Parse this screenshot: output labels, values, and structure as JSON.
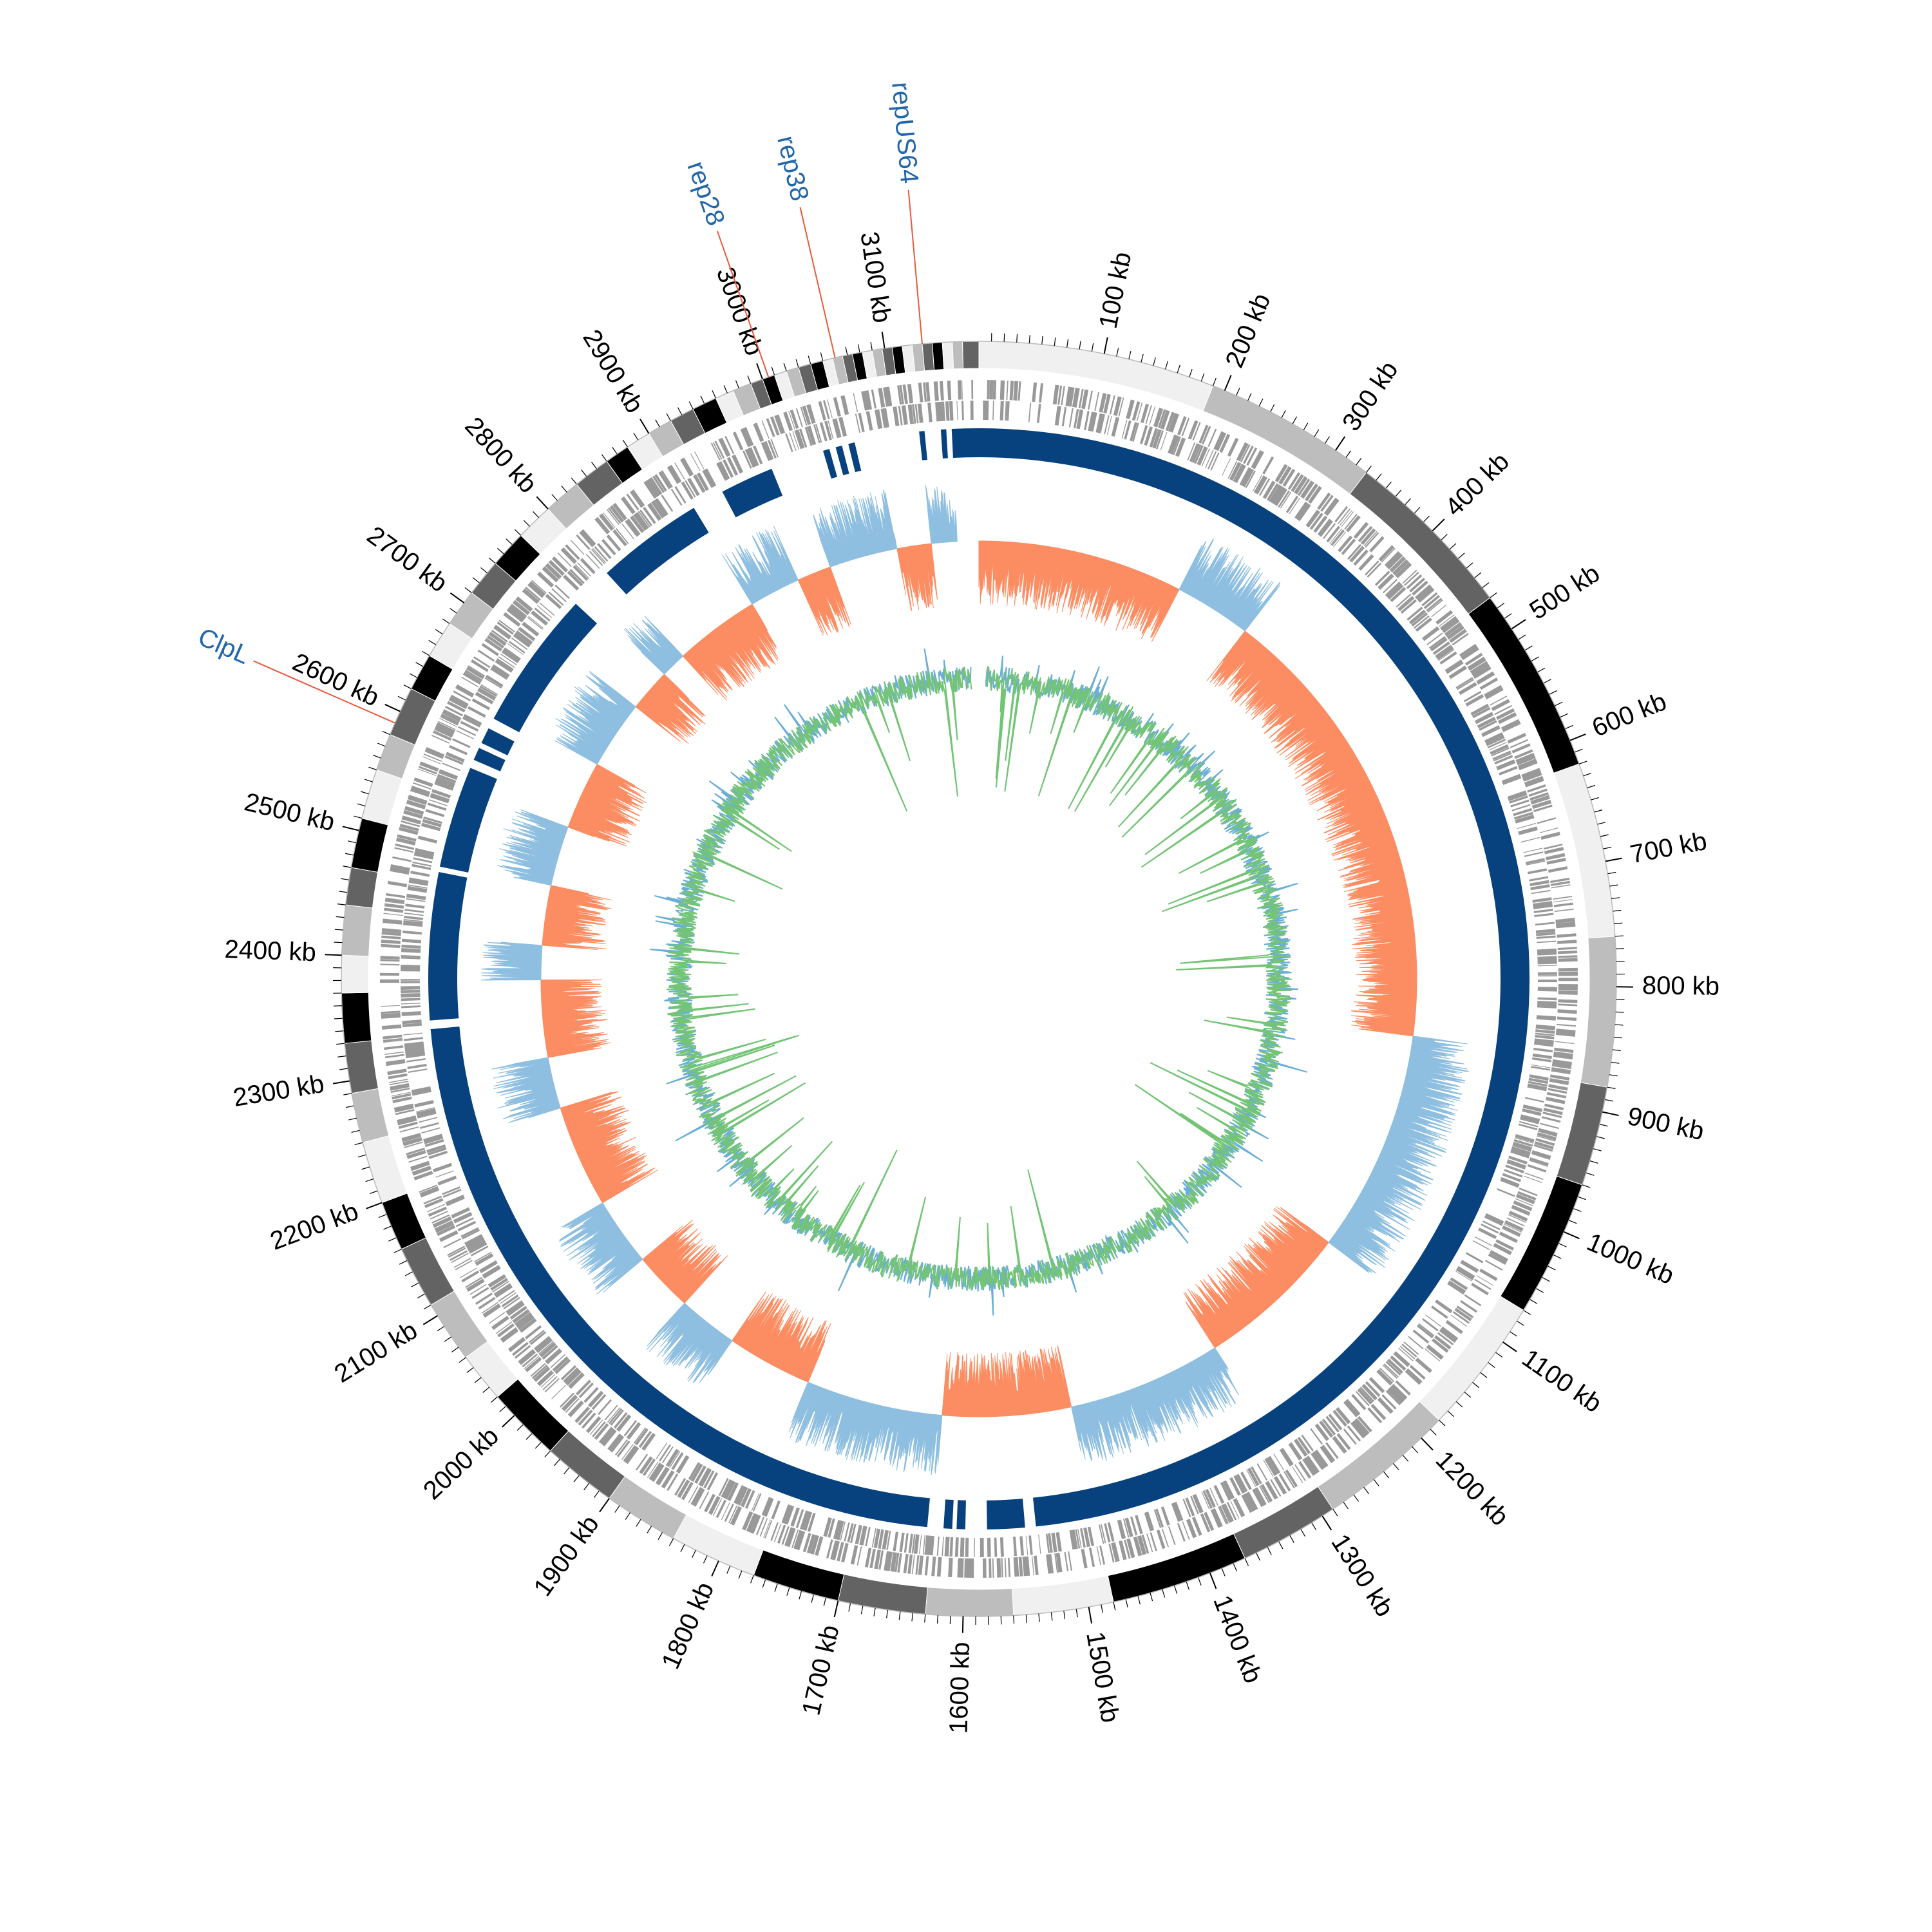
{
  "chart_data": {
    "type": "circular-genome",
    "xlim": [
      0,
      3175
    ],
    "xticks": [
      {
        "value": 100,
        "label": "100 kb"
      },
      {
        "value": 200,
        "label": "200 kb"
      },
      {
        "value": 300,
        "label": "300 kb"
      },
      {
        "value": 400,
        "label": "400 kb"
      },
      {
        "value": 500,
        "label": "500 kb"
      },
      {
        "value": 600,
        "label": "600 kb"
      },
      {
        "value": 700,
        "label": "700 kb"
      },
      {
        "value": 800,
        "label": "800 kb"
      },
      {
        "value": 900,
        "label": "900 kb"
      },
      {
        "value": 1000,
        "label": "1000 kb"
      },
      {
        "value": 1100,
        "label": "1100 kb"
      },
      {
        "value": 1200,
        "label": "1200 kb"
      },
      {
        "value": 1300,
        "label": "1300 kb"
      },
      {
        "value": 1400,
        "label": "1400 kb"
      },
      {
        "value": 1500,
        "label": "1500 kb"
      },
      {
        "value": 1600,
        "label": "1600 kb"
      },
      {
        "value": 1700,
        "label": "1700 kb"
      },
      {
        "value": 1800,
        "label": "1800 kb"
      },
      {
        "value": 1900,
        "label": "1900 kb"
      },
      {
        "value": 2000,
        "label": "2000 kb"
      },
      {
        "value": 2100,
        "label": "2100 kb"
      },
      {
        "value": 2200,
        "label": "2200 kb"
      },
      {
        "value": 2300,
        "label": "2300 kb"
      },
      {
        "value": 2400,
        "label": "2400 kb"
      },
      {
        "value": 2500,
        "label": "2500 kb"
      },
      {
        "value": 2600,
        "label": "2600 kb"
      },
      {
        "value": 2700,
        "label": "2700 kb"
      },
      {
        "value": 2800,
        "label": "2800 kb"
      },
      {
        "value": 2900,
        "label": "2900 kb"
      },
      {
        "value": 3000,
        "label": "3000 kb"
      },
      {
        "value": 3100,
        "label": "3100 kb"
      }
    ],
    "bands": {
      "colors": [
        "#f0f0f0",
        "#bdbdbd",
        "#636363",
        "#000000"
      ],
      "ends": [
        190,
        330,
        470,
        620,
        760,
        880,
        960,
        1070,
        1180,
        1290,
        1370,
        1480,
        1560,
        1630,
        1700,
        1770,
        1840,
        1900,
        1960,
        2020,
        2060,
        2110,
        2160,
        2200,
        2250,
        2290,
        2330,
        2370,
        2400,
        2440,
        2470,
        2510,
        2550,
        2580,
        2620,
        2650,
        2680,
        2710,
        2740,
        2770,
        2800,
        2830,
        2860,
        2880,
        2900,
        2920,
        2940,
        2960,
        2975,
        2990,
        3000,
        3010,
        3020,
        3030,
        3040,
        3050,
        3058,
        3066,
        3074,
        3082,
        3090,
        3098,
        3106,
        3114,
        3122,
        3130,
        3138,
        3146,
        3154,
        3162,
        3175
      ]
    },
    "contigs": {
      "color": "#08427e",
      "segments": [
        [
          0,
          1535
        ],
        [
          1545,
          1580
        ],
        [
          1600,
          1608
        ],
        [
          1612,
          1620
        ],
        [
          1635,
          2335
        ],
        [
          2343,
          2480
        ],
        [
          2485,
          2580
        ],
        [
          2588,
          2600
        ],
        [
          2605,
          2620
        ],
        [
          2630,
          2760
        ],
        [
          2800,
          2900
        ],
        [
          2930,
          2980
        ],
        [
          3030,
          3036
        ],
        [
          3042,
          3048
        ],
        [
          3054,
          3060
        ],
        [
          3120,
          3125
        ],
        [
          3140,
          3145
        ],
        [
          3150,
          3175
        ]
      ]
    },
    "skew": {
      "positive": {
        "color": "#fc8d62",
        "segments": [
          [
            0,
            240
          ],
          [
            330,
            860
          ],
          [
            1120,
            1300
          ],
          [
            1480,
            1630
          ],
          [
            1790,
            1890
          ],
          [
            1960,
            2030
          ],
          [
            2110,
            2230
          ],
          [
            2290,
            2380
          ],
          [
            2420,
            2490
          ],
          [
            2560,
            2640
          ],
          [
            2720,
            2770
          ],
          [
            2800,
            2900
          ],
          [
            2960,
            3000
          ],
          [
            3080,
            3120
          ]
        ]
      },
      "negative": {
        "color": "#8ebfe0",
        "segments": [
          [
            240,
            330
          ],
          [
            860,
            1120
          ],
          [
            1300,
            1480
          ],
          [
            1630,
            1790
          ],
          [
            1890,
            1960
          ],
          [
            2030,
            2110
          ],
          [
            2230,
            2290
          ],
          [
            2380,
            2420
          ],
          [
            2490,
            2560
          ],
          [
            2640,
            2720
          ],
          [
            2770,
            2800
          ],
          [
            2900,
            2960
          ],
          [
            3000,
            3080
          ],
          [
            3120,
            3150
          ]
        ]
      }
    },
    "annotations": [
      {
        "label": "ClpL",
        "position": 2590
      },
      {
        "label": "rep28",
        "position": 3005
      },
      {
        "label": "rep38",
        "position": 3060
      },
      {
        "label": "repUS64",
        "position": 3130
      }
    ]
  }
}
